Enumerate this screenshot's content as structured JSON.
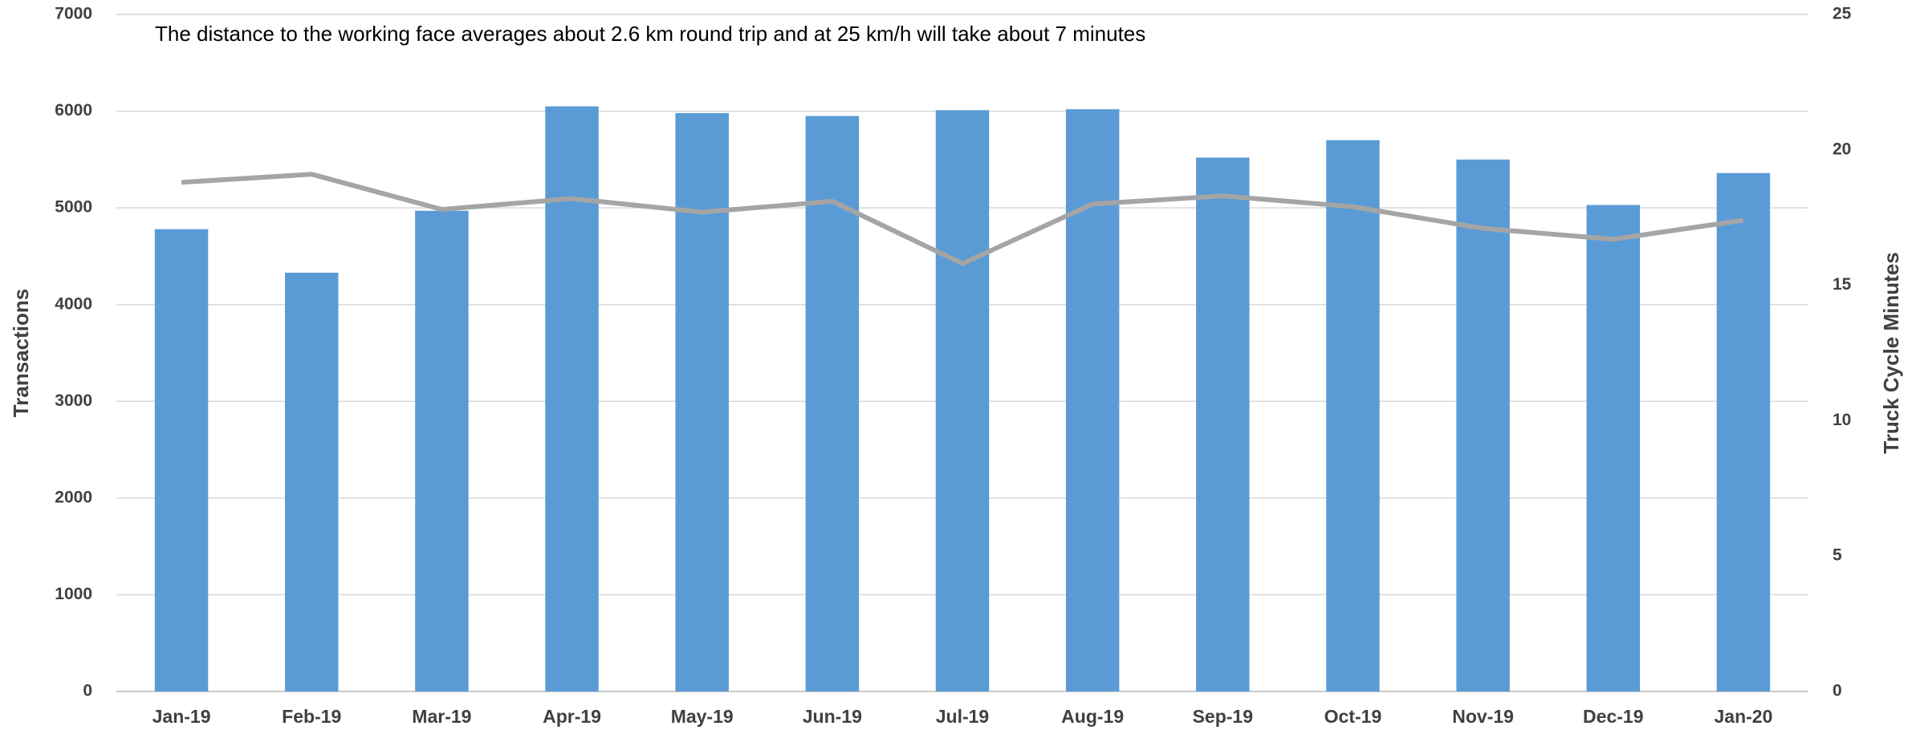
{
  "chart_data": {
    "type": "bar_line",
    "annotation": "The distance to the working face averages about 2.6 km round trip and at 25 km/h will take about 7 minutes",
    "ylabel": "Transactions",
    "y2label": "Truck Cycle Minutes",
    "categories": [
      "Jan-19",
      "Feb-19",
      "Mar-19",
      "Apr-19",
      "May-19",
      "Jun-19",
      "Jul-19",
      "Aug-19",
      "Sep-19",
      "Oct-19",
      "Nov-19",
      "Dec-19",
      "Jan-20"
    ],
    "series": [
      {
        "type": "bar",
        "color": "#5b9bd5",
        "values": [
          4780,
          4330,
          4970,
          6050,
          5980,
          5950,
          6010,
          6020,
          5520,
          5700,
          5500,
          5030,
          5360
        ]
      },
      {
        "type": "line",
        "axis": "y2",
        "color": "#a5a5a5",
        "values": [
          18.8,
          19.1,
          17.8,
          18.2,
          17.7,
          18.1,
          15.8,
          18.0,
          18.3,
          17.9,
          17.1,
          16.7,
          17.4
        ]
      }
    ],
    "ylim": [
      0,
      7000
    ],
    "yticks": [
      0,
      1000,
      2000,
      3000,
      4000,
      5000,
      6000,
      7000
    ],
    "y2lim": [
      0,
      25
    ],
    "y2ticks": [
      0,
      5,
      10,
      15,
      20,
      25
    ],
    "grid": true
  }
}
